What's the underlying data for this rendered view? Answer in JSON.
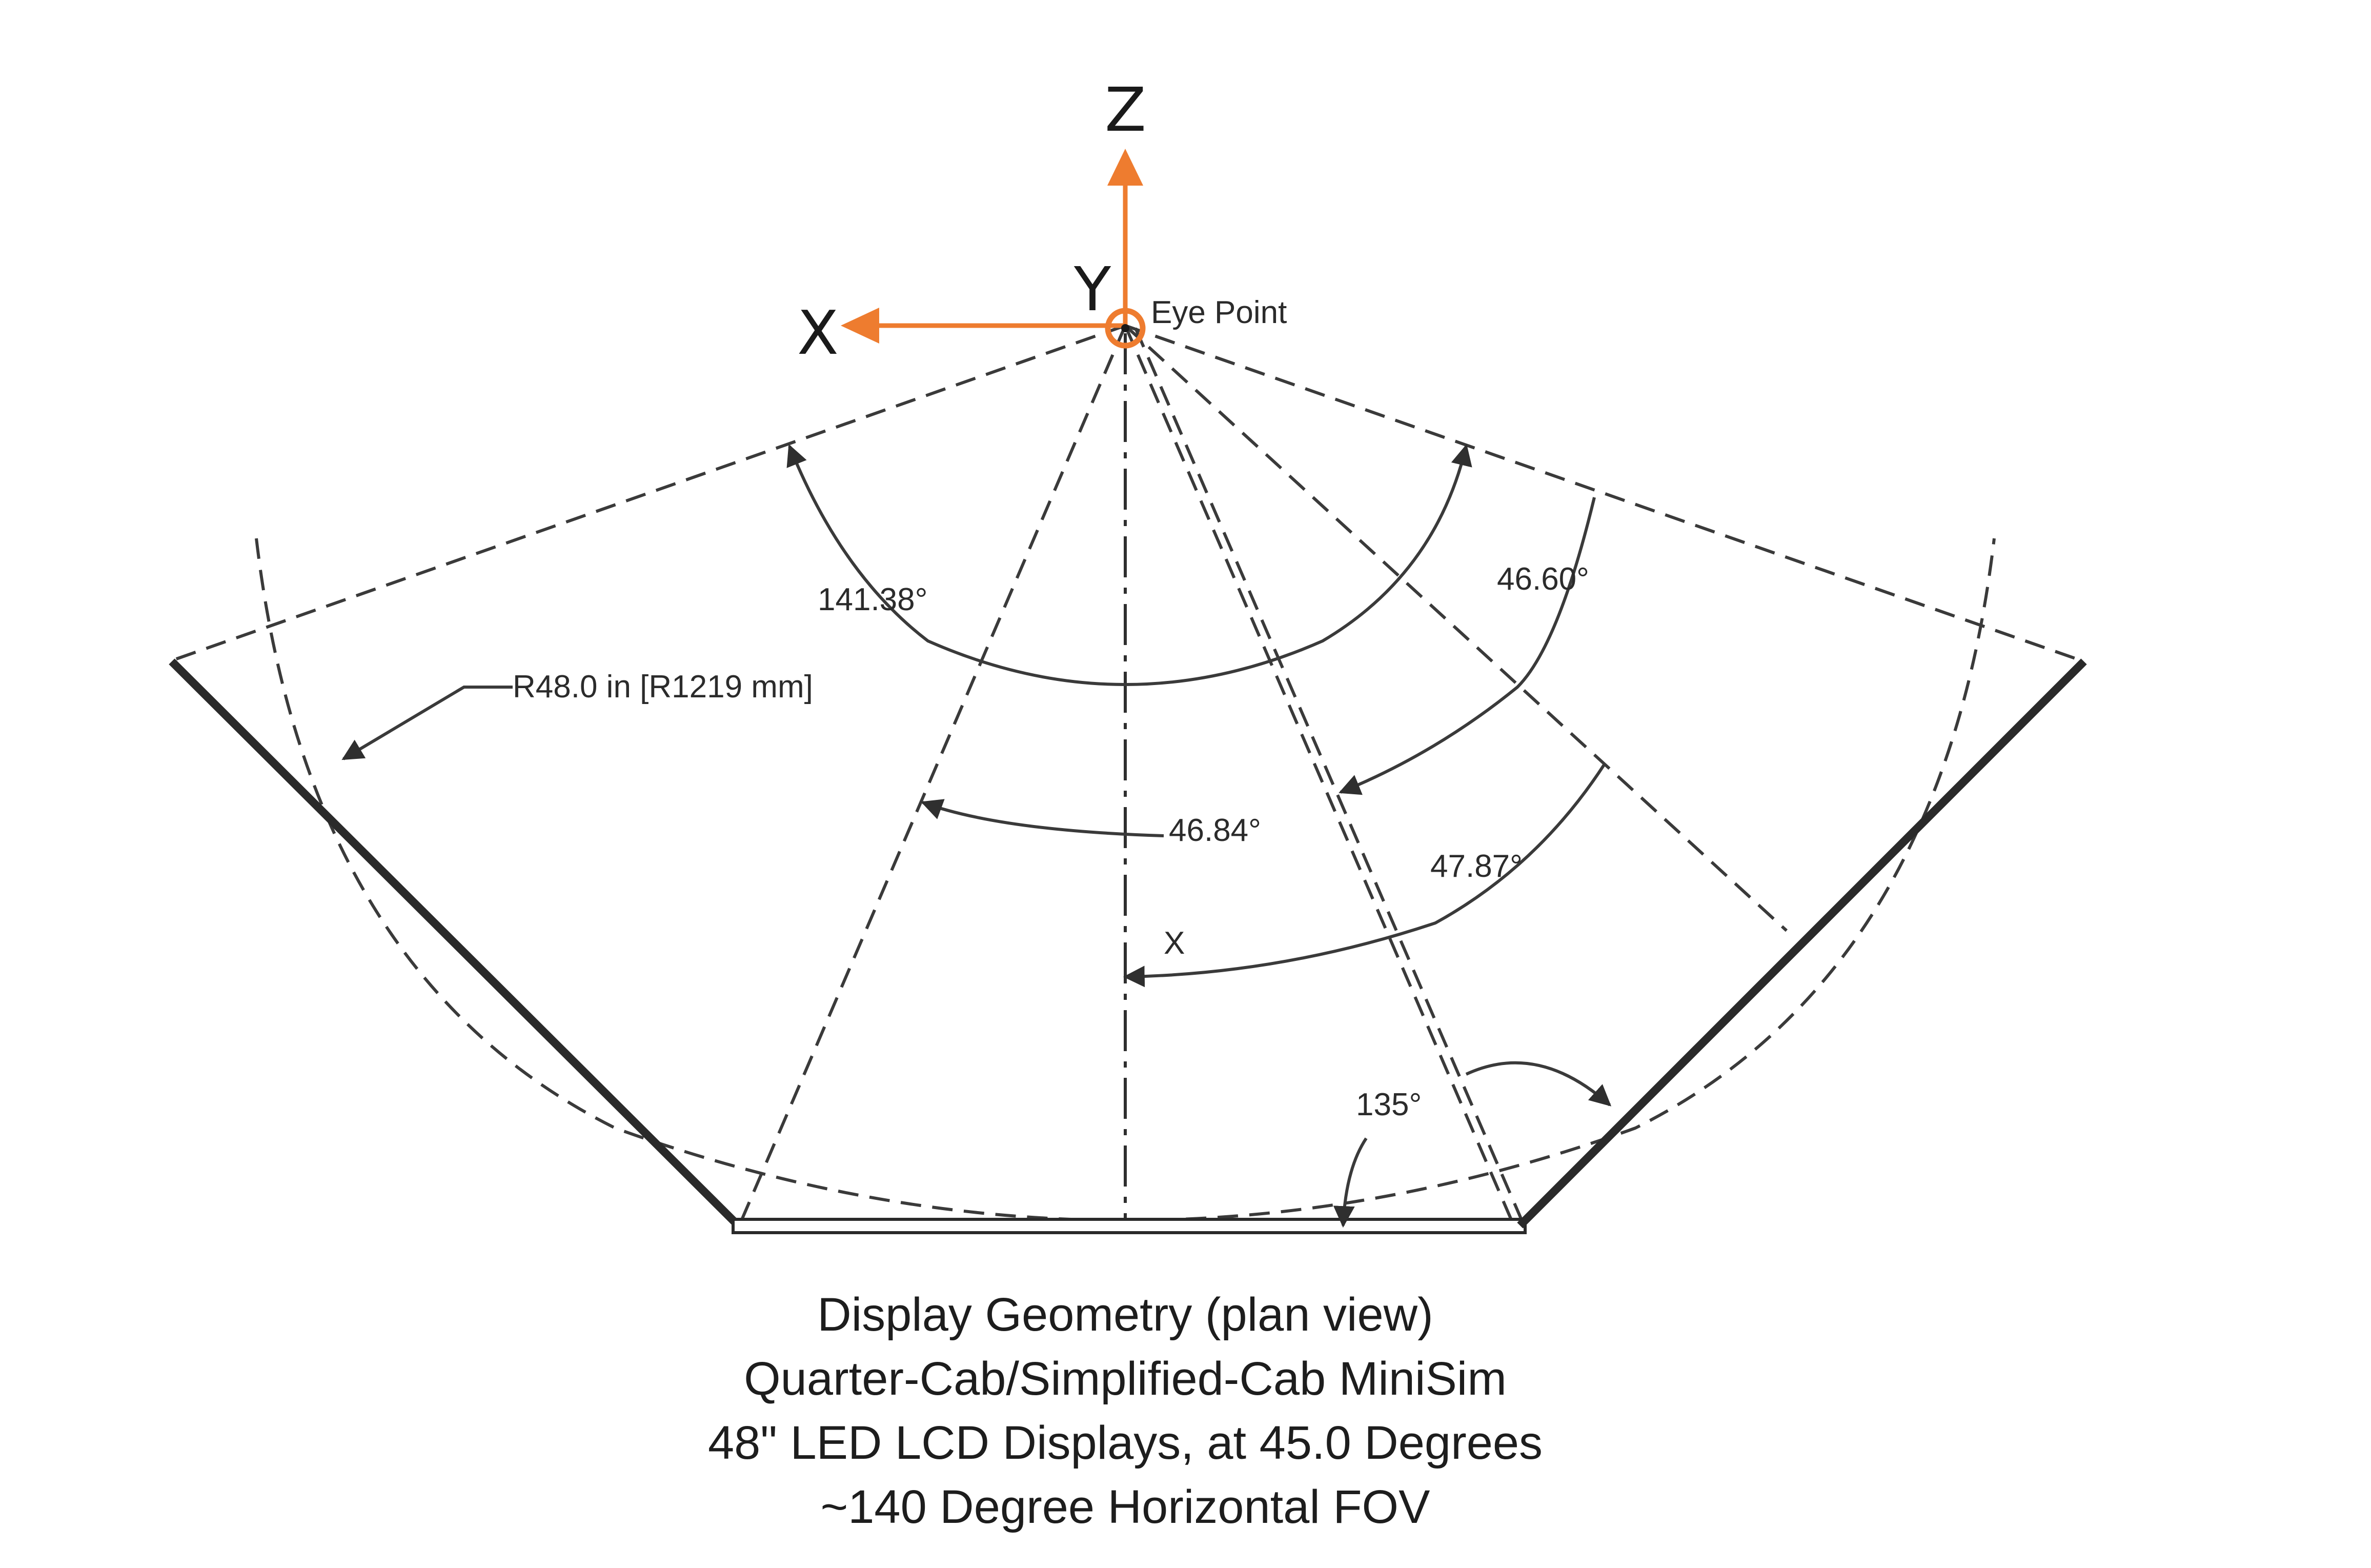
{
  "axes": {
    "x": "X",
    "y": "Y",
    "z": "Z"
  },
  "eye_point": "Eye Point",
  "dimensions": {
    "fov_angle": "141.38°",
    "radius": "R48.0 in [R1219 mm]",
    "center_span": "46.84°",
    "right_span": "46.60°",
    "offset": "47.87°",
    "panel_angle": "135°",
    "x_marker": "X"
  },
  "caption": [
    "Display Geometry (plan view)",
    "Quarter-Cab/Simplified-Cab MiniSim",
    "48\" LED LCD Displays, at 45.0 Degrees",
    "~140 Degree Horizontal FOV"
  ],
  "colors": {
    "axis": "#ee7c2f",
    "lines": "#3a3a3a"
  }
}
